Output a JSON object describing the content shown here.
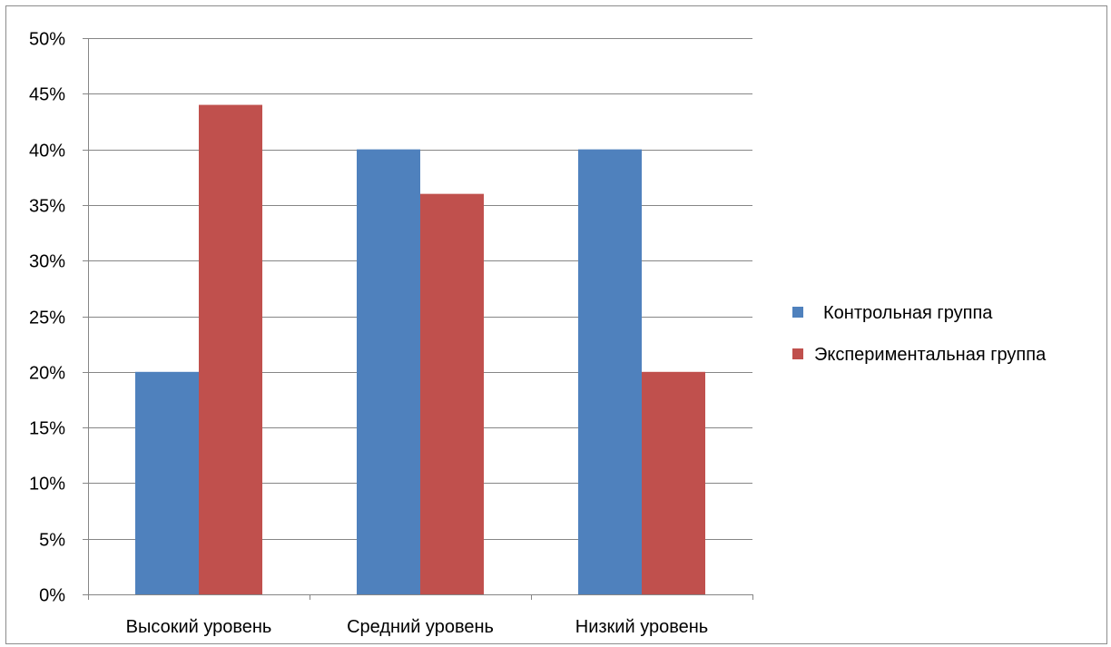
{
  "chart_data": {
    "type": "bar",
    "categories": [
      "Высокий уровень",
      "Средний уровень",
      "Низкий уровень"
    ],
    "series": [
      {
        "name": "Контрольная группа",
        "values": [
          20,
          40,
          40
        ],
        "color": "#4f81bd"
      },
      {
        "name": "Экспериментальная группа",
        "values": [
          44,
          36,
          20
        ],
        "color": "#c0504d"
      }
    ],
    "y_ticks": [
      "0%",
      "5%",
      "10%",
      "15%",
      "20%",
      "25%",
      "30%",
      "35%",
      "40%",
      "45%",
      "50%"
    ],
    "ylim": [
      0,
      50
    ],
    "y_unit": "%",
    "grid": true,
    "legend_position": "right",
    "gridline_color": "#868686"
  }
}
